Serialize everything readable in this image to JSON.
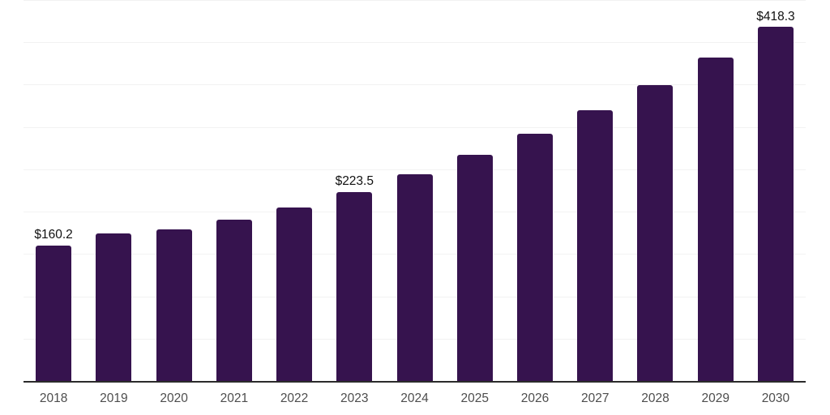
{
  "chart_data": {
    "type": "bar",
    "title": "",
    "xlabel": "",
    "ylabel": "",
    "categories": [
      "2018",
      "2019",
      "2020",
      "2021",
      "2022",
      "2023",
      "2024",
      "2025",
      "2026",
      "2027",
      "2028",
      "2029",
      "2030"
    ],
    "values": [
      160.2,
      174.4,
      178.9,
      190.6,
      205.3,
      223.5,
      244.4,
      267.3,
      292.3,
      319.7,
      349.6,
      382.4,
      418.3
    ],
    "data_labels": [
      {
        "index": 0,
        "text": "$160.2"
      },
      {
        "index": 5,
        "text": "$223.5"
      },
      {
        "index": 12,
        "text": "$418.3"
      }
    ],
    "ylim": [
      0,
      450
    ],
    "gridline_step": 50,
    "grid": "horizontal",
    "legend_position": "none",
    "colors": {
      "bar": "#36134e",
      "gridline": "#f2f2f2",
      "axis_line": "#2b2b2b",
      "x_tick_label": "#4d4d4d",
      "data_label": "#111111",
      "background": "#ffffff"
    }
  }
}
